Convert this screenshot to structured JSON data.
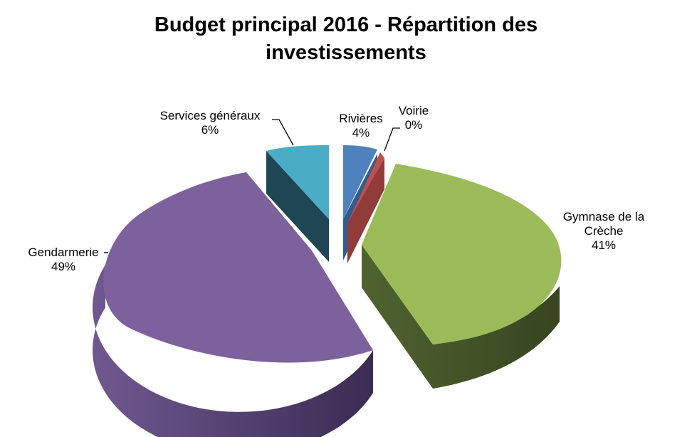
{
  "chart_data": {
    "type": "pie",
    "title": "Budget principal 2016 - Répartition des investissements",
    "style": "3d-exploded",
    "slices": [
      {
        "label": "Rivières",
        "value": 4,
        "value_label": "4%",
        "color": "#4f81bd"
      },
      {
        "label": "Voirie",
        "value": 0,
        "value_label": "0%",
        "color": "#c0504d"
      },
      {
        "label": "Gymnase de la Crèche",
        "label_lines": [
          "Gymnase de la",
          "Crèche"
        ],
        "value": 41,
        "value_label": "41%",
        "color": "#9bbb59"
      },
      {
        "label": "Gendarmerie",
        "value": 49,
        "value_label": "49%",
        "color": "#8064a2"
      },
      {
        "label": "Services généraux",
        "value": 6,
        "value_label": "6%",
        "color": "#4bacc6"
      }
    ]
  }
}
